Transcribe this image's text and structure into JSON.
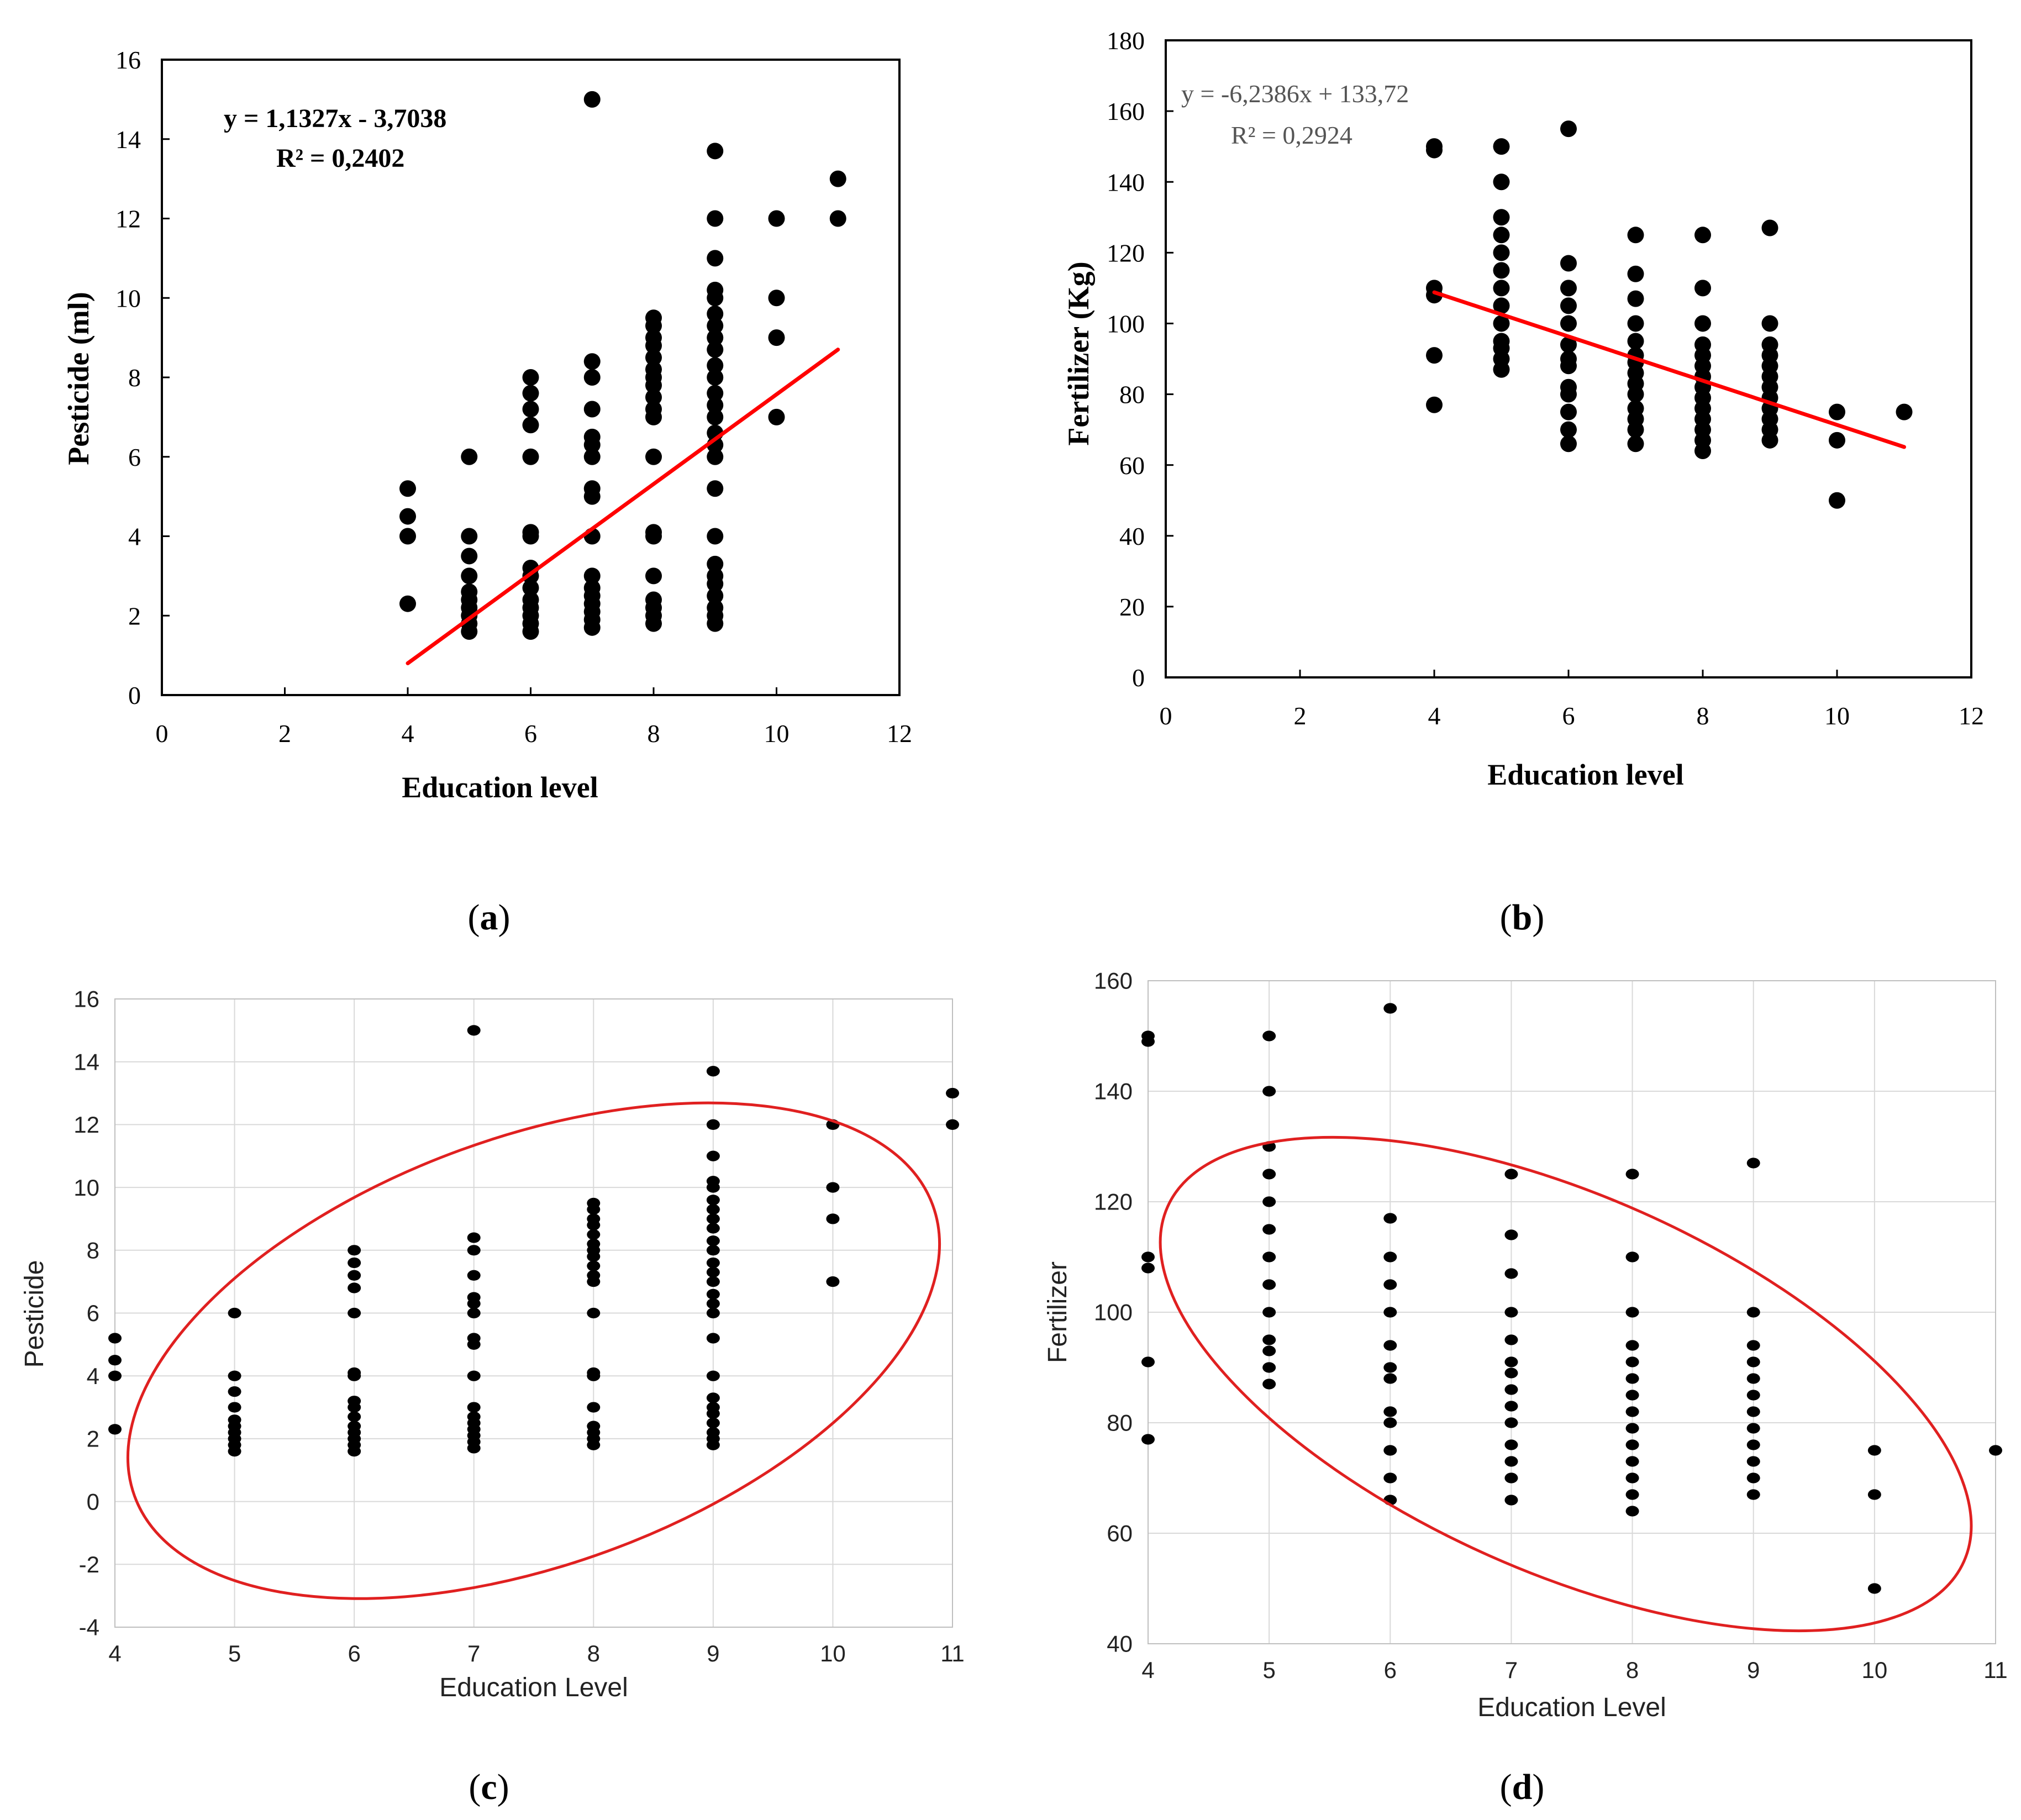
{
  "figure": {
    "panel_labels": [
      {
        "open": "(",
        "letter": "a",
        "close": ")"
      },
      {
        "open": "(",
        "letter": "b",
        "close": ")"
      },
      {
        "open": "(",
        "letter": "c",
        "close": ")"
      },
      {
        "open": "(",
        "letter": "d",
        "close": ")"
      }
    ]
  },
  "colors": {
    "points": "#000000",
    "fit": "#ff0000",
    "ellipse": "#e02020",
    "axis": "#000000",
    "grid": "#d9d9d9",
    "tick_text_plain": "#222222",
    "annotation_gray": "#555555"
  },
  "chart_data": [
    {
      "id": "a",
      "type": "scatter",
      "title": "",
      "xlabel": "Education level",
      "ylabel": "Pesticide (ml)",
      "xlim": [
        0,
        12
      ],
      "ylim": [
        0,
        16
      ],
      "xticks": [
        0,
        2,
        4,
        6,
        8,
        10,
        12
      ],
      "yticks": [
        0,
        2,
        4,
        6,
        8,
        10,
        12,
        14,
        16
      ],
      "xtick_labels": [
        "0",
        "2",
        "4",
        "6",
        "8",
        "10",
        "12"
      ],
      "ytick_labels": [
        "0",
        "2",
        "4",
        "6",
        "8",
        "10",
        "12",
        "14",
        "16"
      ],
      "grid": false,
      "annotation": [
        "y = 1,1327x - 3,7038",
        "R² = 0,2402"
      ],
      "trendline": {
        "x1": 4,
        "y1": 0.8,
        "x2": 11,
        "y2": 8.7
      },
      "points": [
        {
          "x": 4,
          "ys": [
            2.3,
            4.0,
            4.5,
            5.2
          ]
        },
        {
          "x": 5,
          "ys": [
            1.6,
            1.8,
            2.0,
            2.2,
            2.4,
            2.6,
            3.0,
            3.5,
            4.0,
            6.0
          ]
        },
        {
          "x": 6,
          "ys": [
            1.6,
            1.8,
            2.0,
            2.2,
            2.4,
            2.7,
            3.0,
            3.2,
            4.0,
            4.1,
            6.0,
            6.8,
            7.2,
            7.6,
            8.0
          ]
        },
        {
          "x": 7,
          "ys": [
            1.7,
            1.9,
            2.1,
            2.3,
            2.5,
            2.7,
            3.0,
            4.0,
            5.0,
            5.2,
            6.0,
            6.3,
            6.5,
            7.2,
            8.0,
            8.4,
            15.0
          ]
        },
        {
          "x": 8,
          "ys": [
            1.8,
            2.0,
            2.2,
            2.4,
            3.0,
            4.0,
            4.1,
            6.0,
            7.0,
            7.2,
            7.5,
            7.8,
            8.0,
            8.2,
            8.5,
            8.8,
            9.0,
            9.3,
            9.5
          ]
        },
        {
          "x": 9,
          "ys": [
            1.8,
            2.0,
            2.2,
            2.5,
            2.8,
            3.0,
            3.3,
            4.0,
            5.2,
            6.0,
            6.3,
            6.6,
            7.0,
            7.3,
            7.6,
            8.0,
            8.3,
            8.7,
            9.0,
            9.3,
            9.6,
            10.0,
            10.2,
            11.0,
            12.0,
            13.7
          ]
        },
        {
          "x": 10,
          "ys": [
            7.0,
            9.0,
            10.0,
            12.0
          ]
        },
        {
          "x": 11,
          "ys": [
            12.0,
            13.0
          ]
        }
      ]
    },
    {
      "id": "b",
      "type": "scatter",
      "title": "",
      "xlabel": "Education level",
      "ylabel": "Fertilizer (Kg)",
      "xlim": [
        0,
        12
      ],
      "ylim": [
        0,
        180
      ],
      "xticks": [
        0,
        2,
        4,
        6,
        8,
        10,
        12
      ],
      "yticks": [
        0,
        20,
        40,
        60,
        80,
        100,
        120,
        140,
        160,
        180
      ],
      "xtick_labels": [
        "0",
        "2",
        "4",
        "6",
        "8",
        "10",
        "12"
      ],
      "ytick_labels": [
        "0",
        "20",
        "40",
        "60",
        "80",
        "100",
        "120",
        "140",
        "160",
        "180"
      ],
      "grid": false,
      "annotation": [
        "y = -6,2386x + 133,72",
        "R² = 0,2924"
      ],
      "trendline": {
        "x1": 4,
        "y1": 108.8,
        "x2": 11,
        "y2": 65.1
      },
      "points": [
        {
          "x": 4,
          "ys": [
            77,
            91,
            108,
            110,
            149,
            150
          ]
        },
        {
          "x": 5,
          "ys": [
            87,
            90,
            93,
            95,
            100,
            105,
            110,
            115,
            120,
            125,
            130,
            140,
            150
          ]
        },
        {
          "x": 6,
          "ys": [
            66,
            70,
            75,
            80,
            82,
            88,
            90,
            94,
            100,
            105,
            110,
            117,
            155
          ]
        },
        {
          "x": 7,
          "ys": [
            66,
            70,
            73,
            76,
            80,
            83,
            86,
            89,
            91,
            95,
            100,
            107,
            114,
            125
          ]
        },
        {
          "x": 8,
          "ys": [
            64,
            67,
            70,
            73,
            76,
            79,
            82,
            85,
            88,
            91,
            94,
            100,
            110,
            125
          ]
        },
        {
          "x": 9,
          "ys": [
            67,
            70,
            73,
            76,
            79,
            82,
            85,
            88,
            91,
            94,
            100,
            127
          ]
        },
        {
          "x": 10,
          "ys": [
            50,
            67,
            75
          ]
        },
        {
          "x": 11,
          "ys": [
            75
          ]
        }
      ]
    },
    {
      "id": "c",
      "type": "scatter",
      "title": "",
      "xlabel": "Education Level",
      "ylabel": "Pesticide",
      "xlim": [
        4,
        11
      ],
      "ylim": [
        -4,
        16
      ],
      "xticks": [
        4,
        5,
        6,
        7,
        8,
        9,
        10,
        11
      ],
      "yticks": [
        -4,
        -2,
        0,
        2,
        4,
        6,
        8,
        10,
        12,
        14,
        16
      ],
      "xtick_labels": [
        "4",
        "5",
        "6",
        "7",
        "8",
        "9",
        "10",
        "11"
      ],
      "ytick_labels": [
        "-4",
        "-2",
        "0",
        "2",
        "4",
        "6",
        "8",
        "10",
        "12",
        "14",
        "16"
      ],
      "grid": true,
      "ellipse": {
        "cx": 7.5,
        "cy": 4.8,
        "rx": 3.55,
        "ry": 6.8,
        "rotate_deg": -20
      },
      "points": [
        {
          "x": 4,
          "ys": [
            2.3,
            4.0,
            4.5,
            5.2
          ]
        },
        {
          "x": 5,
          "ys": [
            1.6,
            1.8,
            2.0,
            2.2,
            2.4,
            2.6,
            3.0,
            3.5,
            4.0,
            6.0
          ]
        },
        {
          "x": 6,
          "ys": [
            1.6,
            1.8,
            2.0,
            2.2,
            2.4,
            2.7,
            3.0,
            3.2,
            4.0,
            4.1,
            6.0,
            6.8,
            7.2,
            7.6,
            8.0
          ]
        },
        {
          "x": 7,
          "ys": [
            1.7,
            1.9,
            2.1,
            2.3,
            2.5,
            2.7,
            3.0,
            4.0,
            5.0,
            5.2,
            6.0,
            6.3,
            6.5,
            7.2,
            8.0,
            8.4,
            15.0
          ]
        },
        {
          "x": 8,
          "ys": [
            1.8,
            2.0,
            2.2,
            2.4,
            3.0,
            4.0,
            4.1,
            6.0,
            7.0,
            7.2,
            7.5,
            7.8,
            8.0,
            8.2,
            8.5,
            8.8,
            9.0,
            9.3,
            9.5
          ]
        },
        {
          "x": 9,
          "ys": [
            1.8,
            2.0,
            2.2,
            2.5,
            2.8,
            3.0,
            3.3,
            4.0,
            5.2,
            6.0,
            6.3,
            6.6,
            7.0,
            7.3,
            7.6,
            8.0,
            8.3,
            8.7,
            9.0,
            9.3,
            9.6,
            10.0,
            10.2,
            11.0,
            12.0,
            13.7
          ]
        },
        {
          "x": 10,
          "ys": [
            7.0,
            9.0,
            10.0,
            12.0
          ]
        },
        {
          "x": 11,
          "ys": [
            12.0,
            13.0
          ]
        }
      ]
    },
    {
      "id": "d",
      "type": "scatter",
      "title": "",
      "xlabel": "Education Level",
      "ylabel": "Fertilizer",
      "xlim": [
        4,
        11
      ],
      "ylim": [
        40,
        160
      ],
      "xticks": [
        4,
        5,
        6,
        7,
        8,
        9,
        10,
        11
      ],
      "yticks": [
        40,
        60,
        80,
        100,
        120,
        140,
        160
      ],
      "xtick_labels": [
        "4",
        "5",
        "6",
        "7",
        "8",
        "9",
        "10",
        "11"
      ],
      "ytick_labels": [
        "40",
        "60",
        "80",
        "100",
        "120",
        "140",
        "160"
      ],
      "grid": true,
      "ellipse": {
        "cx": 7.45,
        "cy": 87,
        "rx": 3.6,
        "ry": 34,
        "rotate_deg": 24
      },
      "points": [
        {
          "x": 4,
          "ys": [
            77,
            91,
            108,
            110,
            149,
            150
          ]
        },
        {
          "x": 5,
          "ys": [
            87,
            90,
            93,
            95,
            100,
            105,
            110,
            115,
            120,
            125,
            130,
            140,
            150
          ]
        },
        {
          "x": 6,
          "ys": [
            66,
            70,
            75,
            80,
            82,
            88,
            90,
            94,
            100,
            105,
            110,
            117,
            155
          ]
        },
        {
          "x": 7,
          "ys": [
            66,
            70,
            73,
            76,
            80,
            83,
            86,
            89,
            91,
            95,
            100,
            107,
            114,
            125
          ]
        },
        {
          "x": 8,
          "ys": [
            64,
            67,
            70,
            73,
            76,
            79,
            82,
            85,
            88,
            91,
            94,
            100,
            110,
            125
          ]
        },
        {
          "x": 9,
          "ys": [
            67,
            70,
            73,
            76,
            79,
            82,
            85,
            88,
            91,
            94,
            100,
            127
          ]
        },
        {
          "x": 10,
          "ys": [
            50,
            67,
            75
          ]
        },
        {
          "x": 11,
          "ys": [
            75
          ]
        }
      ]
    }
  ]
}
